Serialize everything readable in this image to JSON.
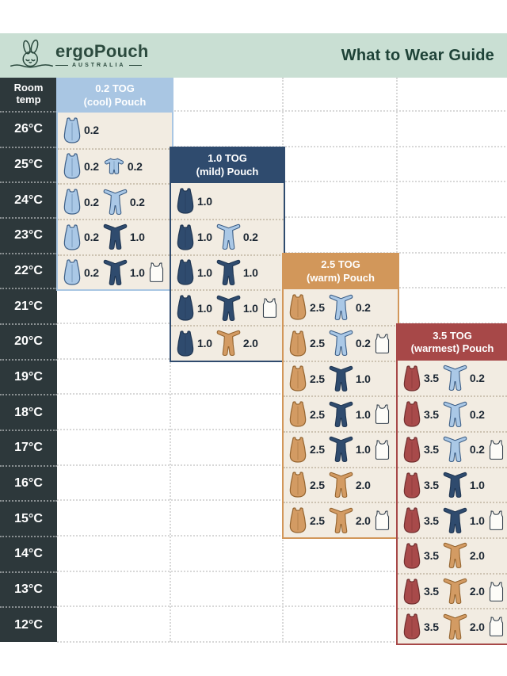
{
  "header": {
    "brand": "ergoPouch",
    "brand_sub": "AUSTRALIA",
    "title": "What to Wear Guide",
    "bg": "#c9dfd3",
    "text_color": "#1e4237"
  },
  "temp_column": {
    "header": "Room temp",
    "bg": "#2d383b",
    "temps": [
      "26°C",
      "25°C",
      "24°C",
      "23°C",
      "22°C",
      "21°C",
      "20°C",
      "19°C",
      "18°C",
      "17°C",
      "16°C",
      "15°C",
      "14°C",
      "13°C",
      "12°C"
    ]
  },
  "icon_colors": {
    "lightblue": {
      "fill": "#aac8e6",
      "stroke": "#3d5f87"
    },
    "navy": {
      "fill": "#2f4b6e",
      "stroke": "#203652"
    },
    "tan": {
      "fill": "#d39b63",
      "stroke": "#94642f"
    },
    "red": {
      "fill": "#a84a4a",
      "stroke": "#712f2f"
    },
    "white": {
      "fill": "#fdfcf8",
      "stroke": "#333f4b"
    }
  },
  "panels": [
    {
      "name": "0.2 TOG (cool) Pouch",
      "title_line1": "0.2 TOG",
      "title_line2": "(cool) Pouch",
      "color": "#a9c6e3",
      "body_bg": "#f2ece2",
      "rows": [
        {
          "temp": "26°C",
          "items": [
            {
              "icon": "pouch",
              "color": "lightblue",
              "label": "0.2"
            }
          ]
        },
        {
          "temp": "25°C",
          "items": [
            {
              "icon": "pouch",
              "color": "lightblue",
              "label": "0.2"
            },
            {
              "icon": "romper",
              "color": "lightblue",
              "label": "0.2"
            }
          ]
        },
        {
          "temp": "24°C",
          "items": [
            {
              "icon": "pouch",
              "color": "lightblue",
              "label": "0.2"
            },
            {
              "icon": "onesie",
              "color": "lightblue",
              "label": "0.2"
            }
          ]
        },
        {
          "temp": "23°C",
          "items": [
            {
              "icon": "pouch",
              "color": "lightblue",
              "label": "0.2"
            },
            {
              "icon": "onesie",
              "color": "navy",
              "label": "1.0"
            }
          ]
        },
        {
          "temp": "22°C",
          "items": [
            {
              "icon": "pouch",
              "color": "lightblue",
              "label": "0.2"
            },
            {
              "icon": "onesie",
              "color": "navy",
              "label": "1.0"
            },
            {
              "icon": "singlet",
              "color": "white",
              "label": ""
            }
          ]
        }
      ]
    },
    {
      "name": "1.0 TOG (mild) Pouch",
      "title_line1": "1.0 TOG",
      "title_line2": "(mild) Pouch",
      "color": "#2f4b6e",
      "body_bg": "#f2ece2",
      "rows": [
        {
          "temp": "24°C",
          "items": [
            {
              "icon": "pouch",
              "color": "navy",
              "label": "1.0"
            }
          ]
        },
        {
          "temp": "23°C",
          "items": [
            {
              "icon": "pouch",
              "color": "navy",
              "label": "1.0"
            },
            {
              "icon": "onesie",
              "color": "lightblue",
              "label": "0.2"
            }
          ]
        },
        {
          "temp": "22°C",
          "items": [
            {
              "icon": "pouch",
              "color": "navy",
              "label": "1.0"
            },
            {
              "icon": "onesie",
              "color": "navy",
              "label": "1.0"
            }
          ]
        },
        {
          "temp": "21°C",
          "items": [
            {
              "icon": "pouch",
              "color": "navy",
              "label": "1.0"
            },
            {
              "icon": "onesie",
              "color": "navy",
              "label": "1.0"
            },
            {
              "icon": "singlet",
              "color": "white",
              "label": ""
            }
          ]
        },
        {
          "temp": "20°C",
          "items": [
            {
              "icon": "pouch",
              "color": "navy",
              "label": "1.0"
            },
            {
              "icon": "onesie",
              "color": "tan",
              "label": "2.0"
            }
          ]
        }
      ]
    },
    {
      "name": "2.5 TOG (warm) Pouch",
      "title_line1": "2.5 TOG",
      "title_line2": "(warm) Pouch",
      "color": "#d2975a",
      "body_bg": "#f2ece2",
      "rows": [
        {
          "temp": "21°C",
          "items": [
            {
              "icon": "pouch",
              "color": "tan",
              "label": "2.5"
            },
            {
              "icon": "onesie",
              "color": "lightblue",
              "label": "0.2"
            }
          ]
        },
        {
          "temp": "20°C",
          "items": [
            {
              "icon": "pouch",
              "color": "tan",
              "label": "2.5"
            },
            {
              "icon": "onesie",
              "color": "lightblue",
              "label": "0.2"
            },
            {
              "icon": "singlet",
              "color": "white",
              "label": ""
            }
          ]
        },
        {
          "temp": "19°C",
          "items": [
            {
              "icon": "pouch",
              "color": "tan",
              "label": "2.5"
            },
            {
              "icon": "onesie",
              "color": "navy",
              "label": "1.0"
            }
          ]
        },
        {
          "temp": "18°C",
          "items": [
            {
              "icon": "pouch",
              "color": "tan",
              "label": "2.5"
            },
            {
              "icon": "onesie",
              "color": "navy",
              "label": "1.0"
            },
            {
              "icon": "singlet",
              "color": "white",
              "label": ""
            }
          ]
        },
        {
          "temp": "17°C",
          "items": [
            {
              "icon": "pouch",
              "color": "tan",
              "label": "2.5"
            },
            {
              "icon": "onesie",
              "color": "navy",
              "label": "1.0"
            },
            {
              "icon": "singlet",
              "color": "white",
              "label": ""
            }
          ]
        },
        {
          "temp": "16°C",
          "items": [
            {
              "icon": "pouch",
              "color": "tan",
              "label": "2.5"
            },
            {
              "icon": "onesie",
              "color": "tan",
              "label": "2.0"
            }
          ]
        },
        {
          "temp": "15°C",
          "items": [
            {
              "icon": "pouch",
              "color": "tan",
              "label": "2.5"
            },
            {
              "icon": "onesie",
              "color": "tan",
              "label": "2.0"
            },
            {
              "icon": "singlet",
              "color": "white",
              "label": ""
            }
          ]
        }
      ]
    },
    {
      "name": "3.5 TOG (warmest) Pouch",
      "title_line1": "3.5 TOG",
      "title_line2": "(warmest) Pouch",
      "color": "#a74848",
      "body_bg": "#f2ece2",
      "rows": [
        {
          "temp": "19°C",
          "items": [
            {
              "icon": "pouch",
              "color": "red",
              "label": "3.5"
            },
            {
              "icon": "onesie",
              "color": "lightblue",
              "label": "0.2"
            }
          ]
        },
        {
          "temp": "18°C",
          "items": [
            {
              "icon": "pouch",
              "color": "red",
              "label": "3.5"
            },
            {
              "icon": "onesie",
              "color": "lightblue",
              "label": "0.2"
            }
          ]
        },
        {
          "temp": "17°C",
          "items": [
            {
              "icon": "pouch",
              "color": "red",
              "label": "3.5"
            },
            {
              "icon": "onesie",
              "color": "lightblue",
              "label": "0.2"
            },
            {
              "icon": "singlet",
              "color": "white",
              "label": ""
            }
          ]
        },
        {
          "temp": "16°C",
          "items": [
            {
              "icon": "pouch",
              "color": "red",
              "label": "3.5"
            },
            {
              "icon": "onesie",
              "color": "navy",
              "label": "1.0"
            }
          ]
        },
        {
          "temp": "15°C",
          "items": [
            {
              "icon": "pouch",
              "color": "red",
              "label": "3.5"
            },
            {
              "icon": "onesie",
              "color": "navy",
              "label": "1.0"
            },
            {
              "icon": "singlet",
              "color": "white",
              "label": ""
            }
          ]
        },
        {
          "temp": "14°C",
          "items": [
            {
              "icon": "pouch",
              "color": "red",
              "label": "3.5"
            },
            {
              "icon": "onesie",
              "color": "tan",
              "label": "2.0"
            }
          ]
        },
        {
          "temp": "13°C",
          "items": [
            {
              "icon": "pouch",
              "color": "red",
              "label": "3.5"
            },
            {
              "icon": "onesie",
              "color": "tan",
              "label": "2.0"
            },
            {
              "icon": "singlet",
              "color": "white",
              "label": ""
            }
          ]
        },
        {
          "temp": "12°C",
          "items": [
            {
              "icon": "pouch",
              "color": "red",
              "label": "3.5"
            },
            {
              "icon": "onesie",
              "color": "tan",
              "label": "2.0"
            },
            {
              "icon": "singlet",
              "color": "white",
              "label": ""
            }
          ]
        }
      ]
    }
  ],
  "chart_data": {
    "type": "table",
    "title": "What to Wear Guide",
    "x_header": "Room temp (°C)",
    "temps_c": [
      26,
      25,
      24,
      23,
      22,
      21,
      20,
      19,
      18,
      17,
      16,
      15,
      14,
      13,
      12
    ],
    "series": [
      {
        "name": "0.2 TOG (cool) Pouch",
        "coverage_c": [
          26,
          22
        ],
        "outfits": {
          "26": "0.2 pouch",
          "25": "0.2 pouch + 0.2 romper",
          "24": "0.2 pouch + 0.2 onesie",
          "23": "0.2 pouch + 1.0 onesie",
          "22": "0.2 pouch + 1.0 onesie + singlet"
        }
      },
      {
        "name": "1.0 TOG (mild) Pouch",
        "coverage_c": [
          24,
          20
        ],
        "outfits": {
          "24": "1.0 pouch",
          "23": "1.0 pouch + 0.2 onesie",
          "22": "1.0 pouch + 1.0 onesie",
          "21": "1.0 pouch + 1.0 onesie + singlet",
          "20": "1.0 pouch + 2.0 onesie"
        }
      },
      {
        "name": "2.5 TOG (warm) Pouch",
        "coverage_c": [
          21,
          15
        ],
        "outfits": {
          "21": "2.5 pouch + 0.2 onesie",
          "20": "2.5 pouch + 0.2 onesie + singlet",
          "19": "2.5 pouch + 1.0 onesie",
          "18": "2.5 pouch + 1.0 onesie + singlet",
          "17": "2.5 pouch + 1.0 onesie + singlet",
          "16": "2.5 pouch + 2.0 onesie",
          "15": "2.5 pouch + 2.0 onesie + singlet"
        }
      },
      {
        "name": "3.5 TOG (warmest) Pouch",
        "coverage_c": [
          19,
          12
        ],
        "outfits": {
          "19": "3.5 pouch + 0.2 onesie",
          "18": "3.5 pouch + 0.2 onesie",
          "17": "3.5 pouch + 0.2 onesie + singlet",
          "16": "3.5 pouch + 1.0 onesie",
          "15": "3.5 pouch + 1.0 onesie + singlet",
          "14": "3.5 pouch + 2.0 onesie",
          "13": "3.5 pouch + 2.0 onesie + singlet",
          "12": "3.5 pouch + 2.0 onesie + singlet"
        }
      }
    ]
  }
}
